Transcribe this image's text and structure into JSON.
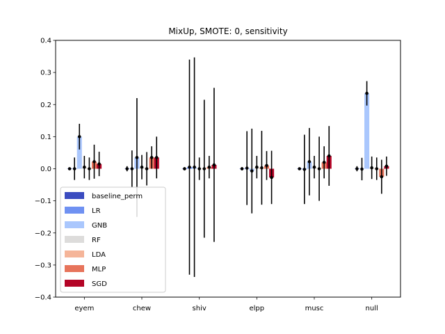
{
  "chart_data": {
    "type": "bar",
    "title": "MixUp, SMOTE: 0, sensitivity",
    "xlabel": "",
    "ylabel": "",
    "ylim": [
      -0.4,
      0.4
    ],
    "yticks": [
      -0.4,
      -0.3,
      -0.2,
      -0.1,
      0.0,
      0.1,
      0.2,
      0.3,
      0.4
    ],
    "ytick_labels": [
      "−0.4",
      "−0.3",
      "−0.2",
      "−0.1",
      "0.0",
      "0.1",
      "0.2",
      "0.3",
      "0.4"
    ],
    "categories": [
      "eyem",
      "chew",
      "shiv",
      "elpp",
      "musc",
      "null"
    ],
    "grid": false,
    "legend_position": "lower-left",
    "series": [
      {
        "name": "baseline_perm",
        "color": "#3b4cc0",
        "values": [
          0.0,
          0.0,
          0.0,
          0.0,
          0.0,
          0.0
        ],
        "err": [
          0.003,
          0.008,
          0.005,
          0.005,
          0.004,
          0.008
        ]
      },
      {
        "name": "LR",
        "color": "#6f91f2",
        "values": [
          0.0,
          0.0,
          0.005,
          0.002,
          -0.002,
          -0.001
        ],
        "err": [
          0.035,
          0.057,
          0.335,
          0.115,
          0.108,
          0.035
        ]
      },
      {
        "name": "GNB",
        "color": "#aac7fd",
        "values": [
          0.1,
          0.035,
          0.005,
          -0.007,
          0.022,
          0.235
        ],
        "err": [
          0.04,
          0.185,
          0.342,
          0.132,
          0.105,
          0.038
        ]
      },
      {
        "name": "RF",
        "color": "#dddcdb",
        "values": [
          0.005,
          0.005,
          0.0,
          0.005,
          0.005,
          0.003
        ],
        "err": [
          0.035,
          0.038,
          0.035,
          0.035,
          0.035,
          0.035
        ]
      },
      {
        "name": "LDA",
        "color": "#f5b599",
        "values": [
          0.0,
          0.0,
          0.0,
          0.003,
          0.0,
          0.0
        ],
        "err": [
          0.035,
          0.052,
          0.215,
          0.115,
          0.1,
          0.035
        ]
      },
      {
        "name": "MLP",
        "color": "#e7745b",
        "values": [
          0.022,
          0.035,
          0.005,
          0.01,
          0.02,
          -0.025
        ],
        "err": [
          0.053,
          0.035,
          0.035,
          0.045,
          0.05,
          0.053
        ]
      },
      {
        "name": "SGD",
        "color": "#b40426",
        "values": [
          0.015,
          0.035,
          0.012,
          -0.027,
          0.04,
          0.008
        ],
        "err": [
          0.038,
          0.065,
          0.24,
          0.083,
          0.093,
          0.03
        ]
      }
    ]
  }
}
